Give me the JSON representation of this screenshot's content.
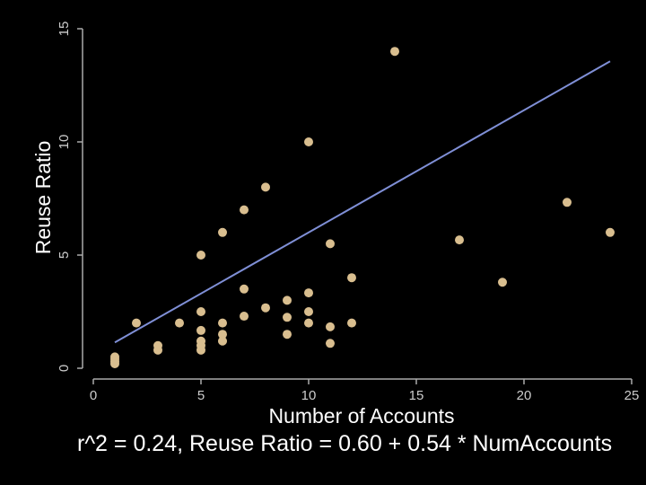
{
  "chart_data": {
    "type": "scatter",
    "title": "",
    "xlabel": "Number of Accounts",
    "ylabel": "Reuse Ratio",
    "xlim": [
      0,
      25
    ],
    "ylim": [
      0,
      15
    ],
    "xticks": [
      0,
      5,
      10,
      15,
      20,
      25
    ],
    "yticks": [
      0,
      5,
      10,
      15
    ],
    "grid": false,
    "colors": {
      "background": "#000000",
      "points": "#d9be8f",
      "fit_line": "#7f8fd6",
      "axis": "#aaaaaa"
    },
    "points": [
      {
        "x": 1,
        "y": 0.5
      },
      {
        "x": 1,
        "y": 0.4
      },
      {
        "x": 1,
        "y": 0.3
      },
      {
        "x": 1,
        "y": 0.2
      },
      {
        "x": 2,
        "y": 2.0
      },
      {
        "x": 3,
        "y": 1.0
      },
      {
        "x": 3,
        "y": 0.8
      },
      {
        "x": 4,
        "y": 2.0
      },
      {
        "x": 5,
        "y": 5.0
      },
      {
        "x": 5,
        "y": 2.5
      },
      {
        "x": 5,
        "y": 1.67
      },
      {
        "x": 5,
        "y": 1.2
      },
      {
        "x": 5,
        "y": 1.0
      },
      {
        "x": 5,
        "y": 0.8
      },
      {
        "x": 6,
        "y": 6.0
      },
      {
        "x": 6,
        "y": 2.0
      },
      {
        "x": 6,
        "y": 1.5
      },
      {
        "x": 6,
        "y": 1.2
      },
      {
        "x": 7,
        "y": 7.0
      },
      {
        "x": 7,
        "y": 3.5
      },
      {
        "x": 7,
        "y": 2.3
      },
      {
        "x": 8,
        "y": 8.0
      },
      {
        "x": 8,
        "y": 2.67
      },
      {
        "x": 9,
        "y": 3.0
      },
      {
        "x": 9,
        "y": 2.25
      },
      {
        "x": 9,
        "y": 1.5
      },
      {
        "x": 10,
        "y": 10.0
      },
      {
        "x": 10,
        "y": 3.33
      },
      {
        "x": 10,
        "y": 2.5
      },
      {
        "x": 10,
        "y": 2.0
      },
      {
        "x": 11,
        "y": 5.5
      },
      {
        "x": 11,
        "y": 1.83
      },
      {
        "x": 11,
        "y": 1.1
      },
      {
        "x": 12,
        "y": 4.0
      },
      {
        "x": 12,
        "y": 2.0
      },
      {
        "x": 14,
        "y": 14.0
      },
      {
        "x": 17,
        "y": 5.67
      },
      {
        "x": 19,
        "y": 3.8
      },
      {
        "x": 22,
        "y": 7.33
      },
      {
        "x": 24,
        "y": 6.0
      }
    ],
    "fit": {
      "intercept": 0.6,
      "slope": 0.54,
      "x_range": [
        1,
        24
      ]
    },
    "annotation": "r^2 = 0.24, Reuse Ratio = 0.60 + 0.54 * NumAccounts"
  }
}
